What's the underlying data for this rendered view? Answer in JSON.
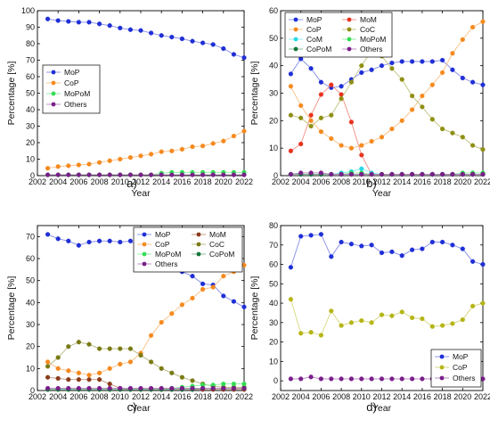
{
  "figure": {
    "panels": [
      "a)",
      "b)",
      "c)",
      "d)"
    ]
  },
  "chart_data": [
    {
      "panel_label": "a)",
      "type": "line",
      "xlabel": "Year",
      "ylabel": "Percentage [%]",
      "xlim": [
        2002,
        2022
      ],
      "ylim": [
        0,
        100
      ],
      "xticks": [
        2002,
        2004,
        2006,
        2008,
        2010,
        2012,
        2014,
        2016,
        2018,
        2020,
        2022
      ],
      "yticks": [
        0,
        10,
        20,
        30,
        40,
        50,
        60,
        70,
        80,
        90,
        100
      ],
      "grid": false,
      "legend_position": "center-left",
      "x": [
        2003,
        2004,
        2005,
        2006,
        2007,
        2008,
        2009,
        2010,
        2011,
        2012,
        2013,
        2014,
        2015,
        2016,
        2017,
        2018,
        2019,
        2020,
        2021,
        2022
      ],
      "series": [
        {
          "name": "MoP",
          "color": "#1f2fd6",
          "values": [
            95,
            94,
            93.5,
            93,
            93,
            92,
            91,
            89.5,
            88.5,
            88,
            86.5,
            85,
            84,
            83,
            81.5,
            80.5,
            79.5,
            77,
            73.5,
            71.5
          ]
        },
        {
          "name": "CoP",
          "color": "#f58a1f",
          "values": [
            4.5,
            5.5,
            6,
            6.5,
            7,
            8,
            9,
            10,
            11,
            12,
            13,
            14.5,
            15,
            16,
            17.5,
            18,
            19.5,
            21,
            24,
            27
          ]
        },
        {
          "name": "MoPoM",
          "color": "#33dd55",
          "values": [
            0.5,
            0.5,
            0.5,
            0.5,
            0.5,
            0.5,
            0.5,
            0.5,
            0.5,
            0.5,
            0.5,
            1.5,
            2,
            2,
            2,
            2,
            2,
            2,
            2,
            2
          ]
        },
        {
          "name": "Others",
          "color": "#7a1f8a",
          "values": [
            0.5,
            0.5,
            0.5,
            0.5,
            0.5,
            0.5,
            0.5,
            0.5,
            0.5,
            0.5,
            0.5,
            0.5,
            0.5,
            0.5,
            0.5,
            0.5,
            0.5,
            0.5,
            0.5,
            0.5
          ]
        }
      ]
    },
    {
      "panel_label": "b)",
      "type": "line",
      "xlabel": "Year",
      "ylabel": "Percentage [%]",
      "xlim": [
        2002,
        2022
      ],
      "ylim": [
        0,
        60
      ],
      "xticks": [
        2002,
        2004,
        2006,
        2008,
        2010,
        2012,
        2014,
        2016,
        2018,
        2020,
        2022
      ],
      "yticks": [
        0,
        10,
        20,
        30,
        40,
        50,
        60
      ],
      "grid": false,
      "legend_position": "top-left",
      "x": [
        2003,
        2004,
        2005,
        2006,
        2007,
        2008,
        2009,
        2010,
        2011,
        2012,
        2013,
        2014,
        2015,
        2016,
        2017,
        2018,
        2019,
        2020,
        2021,
        2022
      ],
      "series": [
        {
          "name": "MoP",
          "color": "#1f2fd6",
          "values": [
            37,
            42.5,
            39,
            34,
            32,
            32.5,
            35,
            37.5,
            38.5,
            40,
            41,
            41.5,
            41.5,
            41.5,
            41.5,
            42,
            38.5,
            35.5,
            34,
            33
          ]
        },
        {
          "name": "MoM",
          "color": "#e8321e",
          "values": [
            9,
            11.5,
            22,
            29.5,
            33,
            29.5,
            19.5,
            7.5,
            0.5,
            0.5,
            0.5,
            0.5,
            0.5,
            0.5,
            0.5,
            0.5,
            0.5,
            0.5,
            0.5,
            0.5
          ]
        },
        {
          "name": "CoP",
          "color": "#f58a1f",
          "values": [
            32.5,
            25.5,
            20,
            16,
            13.5,
            11,
            10,
            11,
            12.5,
            14,
            17,
            20,
            24,
            29,
            33,
            37.5,
            44.5,
            49.5,
            54,
            56
          ]
        },
        {
          "name": "CoC",
          "color": "#8f8f14",
          "values": [
            22,
            21,
            18,
            21,
            22,
            28,
            34,
            40,
            45.5,
            43.5,
            39,
            35,
            29,
            25,
            20.5,
            17,
            15.5,
            14,
            11,
            9.5
          ]
        },
        {
          "name": "CoM",
          "color": "#27d9e6",
          "values": [
            0.5,
            0.5,
            0.5,
            0.5,
            0.5,
            1,
            1.5,
            2.5,
            1,
            0.5,
            0.5,
            0.5,
            0.5,
            0.5,
            0.5,
            0.5,
            0.5,
            0.5,
            0.5,
            0.5
          ]
        },
        {
          "name": "MoPoM",
          "color": "#33dd55",
          "values": [
            0.5,
            0.5,
            0.5,
            0.5,
            0.5,
            0.5,
            1,
            1,
            0.5,
            0.5,
            0.5,
            0.5,
            0.5,
            0.5,
            0.5,
            0.5,
            0.5,
            1,
            1,
            1
          ]
        },
        {
          "name": "CoPoM",
          "color": "#14783a",
          "values": [
            0.5,
            0.5,
            0.5,
            0.5,
            0.5,
            0.5,
            0.5,
            0.5,
            0.5,
            0.5,
            0.5,
            0.5,
            0.5,
            0.5,
            0.5,
            0.5,
            0.5,
            0.5,
            0.5,
            0.5
          ]
        },
        {
          "name": "Others",
          "color": "#7a1f8a",
          "values": [
            0.5,
            1,
            1,
            1,
            0.5,
            0.5,
            0.5,
            0.5,
            0.5,
            0.5,
            0.5,
            0.5,
            0.5,
            0.5,
            0.5,
            0.5,
            0.5,
            0.5,
            0.5,
            0.5
          ]
        }
      ]
    },
    {
      "panel_label": "c)",
      "type": "line",
      "xlabel": "Year",
      "ylabel": "Percentage [%]",
      "xlim": [
        2002,
        2022
      ],
      "ylim": [
        0,
        75
      ],
      "xticks": [
        2002,
        2004,
        2006,
        2008,
        2010,
        2012,
        2014,
        2016,
        2018,
        2020,
        2022
      ],
      "yticks": [
        0,
        10,
        20,
        30,
        40,
        50,
        60,
        70
      ],
      "grid": false,
      "legend_position": "top-right",
      "x": [
        2003,
        2004,
        2005,
        2006,
        2007,
        2008,
        2009,
        2010,
        2011,
        2012,
        2013,
        2014,
        2015,
        2016,
        2017,
        2018,
        2019,
        2020,
        2021,
        2022
      ],
      "series": [
        {
          "name": "MoP",
          "color": "#1f2fd6",
          "values": [
            71,
            69,
            68,
            66,
            67.5,
            68,
            68,
            67.5,
            68,
            65,
            60,
            58,
            55,
            54,
            52,
            48.5,
            48,
            43,
            40.5,
            38
          ]
        },
        {
          "name": "MoM",
          "color": "#8a3b1a",
          "values": [
            6,
            5.5,
            5,
            5,
            5,
            5,
            3,
            1,
            0.5,
            0.5,
            0.5,
            0.5,
            0.5,
            0.5,
            0.5,
            0.5,
            0.5,
            0.5,
            0.5,
            0.5
          ]
        },
        {
          "name": "CoP",
          "color": "#f58a1f",
          "values": [
            13,
            10,
            9,
            8,
            7,
            8,
            10,
            12,
            13,
            17,
            25,
            31,
            35,
            39,
            42,
            46,
            47,
            52,
            54,
            57
          ]
        },
        {
          "name": "CoC",
          "color": "#7a7a14",
          "values": [
            11,
            15,
            20,
            22,
            21,
            19,
            19,
            19,
            19,
            16,
            13,
            10,
            8,
            6,
            4.5,
            3,
            2,
            1.5,
            1.5,
            1.5
          ]
        },
        {
          "name": "MoPoM",
          "color": "#33dd55",
          "values": [
            0.5,
            0.5,
            0.5,
            0.5,
            0.5,
            0.5,
            0.5,
            0.5,
            0.5,
            0.5,
            0.5,
            0.5,
            1,
            1.5,
            2,
            2.5,
            2.5,
            3,
            3,
            3
          ]
        },
        {
          "name": "CoPoM",
          "color": "#14783a",
          "values": [
            0.5,
            0.5,
            0.5,
            0.5,
            0.5,
            0.5,
            0.5,
            0.5,
            0.5,
            0.5,
            0.5,
            0.5,
            0.5,
            0.5,
            0.5,
            1,
            1,
            1,
            1,
            1
          ]
        },
        {
          "name": "Others",
          "color": "#7a1f8a",
          "values": [
            1,
            1,
            1,
            1,
            1,
            1,
            1,
            1,
            1,
            1,
            1,
            1,
            1,
            1,
            1,
            1,
            1,
            1,
            1,
            1
          ]
        }
      ]
    },
    {
      "panel_label": "d)",
      "type": "line",
      "xlabel": "Year",
      "ylabel": "Percentage [%]",
      "xlim": [
        2002,
        2022
      ],
      "ylim": [
        -5,
        80
      ],
      "xticks": [
        2002,
        2004,
        2006,
        2008,
        2010,
        2012,
        2014,
        2016,
        2018,
        2020,
        2022
      ],
      "yticks": [
        0,
        10,
        20,
        30,
        40,
        50,
        60,
        70,
        80
      ],
      "grid": false,
      "legend_position": "bottom-right",
      "x": [
        2003,
        2004,
        2005,
        2006,
        2007,
        2008,
        2009,
        2010,
        2011,
        2012,
        2013,
        2014,
        2015,
        2016,
        2017,
        2018,
        2019,
        2020,
        2021,
        2022
      ],
      "series": [
        {
          "name": "MoP",
          "color": "#1f2fd6",
          "values": [
            58.5,
            74.5,
            75,
            75.5,
            64,
            71.5,
            70.5,
            69.5,
            70,
            66,
            66.5,
            64.5,
            67.5,
            68,
            71.5,
            71.5,
            70,
            68,
            61.5,
            60
          ]
        },
        {
          "name": "CoP",
          "color": "#b5b515",
          "values": [
            42,
            24.5,
            25,
            23.5,
            36,
            28.5,
            30,
            31,
            30,
            34,
            33.5,
            35.5,
            32.5,
            32,
            28,
            28.5,
            29.5,
            31.5,
            38.5,
            40
          ]
        },
        {
          "name": "Others",
          "color": "#7a1f8a",
          "values": [
            1,
            1,
            2,
            1,
            1,
            1,
            1,
            1,
            1,
            1,
            1,
            1,
            1,
            1,
            1,
            1,
            1,
            1,
            1,
            1
          ]
        }
      ]
    }
  ]
}
